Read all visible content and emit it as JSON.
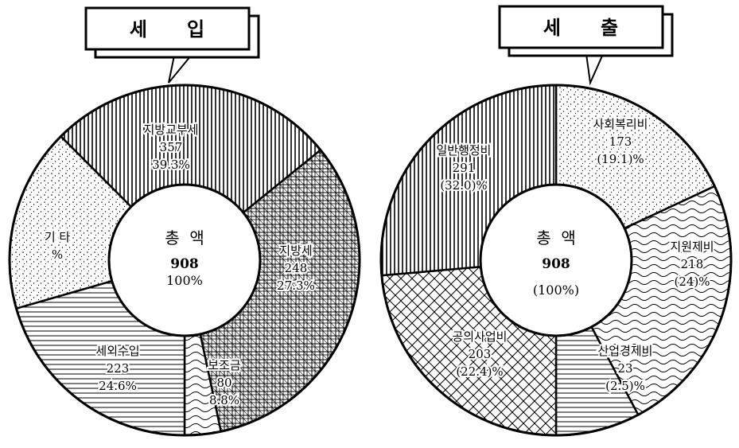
{
  "chart_data": [
    {
      "type": "pie",
      "title": "세      입",
      "center": {
        "label": "총  액",
        "total": "908",
        "percent": "100%"
      },
      "slices": [
        {
          "label": "지방교부세",
          "value": 357,
          "value_text": "357",
          "percent_text": "39.3%",
          "pattern": "hatch"
        },
        {
          "label": "지방세",
          "value": 248,
          "value_text": "248",
          "percent_text": "27.3%",
          "pattern": "grid"
        },
        {
          "label": "보조금",
          "value": 80,
          "value_text": "80",
          "percent_text": "8.8%",
          "pattern": "wave"
        },
        {
          "label": "세외수입",
          "value": 223,
          "value_text": "223",
          "percent_text": "24.6%",
          "pattern": "lines"
        },
        {
          "label": "기  타",
          "value": 0,
          "value_text": "",
          "percent_text": "%",
          "pattern": "dots"
        }
      ]
    },
    {
      "type": "pie",
      "title": "세      출",
      "center": {
        "label": "총  액",
        "total": "908",
        "percent": "(100%)"
      },
      "slices": [
        {
          "label": "사회복리비",
          "value": 173,
          "value_text": "173",
          "percent_text": "(19.1)%",
          "pattern": "dots"
        },
        {
          "label": "지원제비",
          "value": 218,
          "value_text": "218",
          "percent_text": "(24)%",
          "pattern": "wave"
        },
        {
          "label": "산업경제비",
          "value": 23,
          "value_text": "23",
          "percent_text": "(2.5)%",
          "pattern": "lines"
        },
        {
          "label": "공의사업비",
          "value": 203,
          "value_text": "203",
          "percent_text": "(22.4)%",
          "pattern": "cross"
        },
        {
          "label": "일반행정비",
          "value": 291,
          "value_text": "291",
          "percent_text": "(32.0)%",
          "pattern": "hatch"
        }
      ]
    }
  ]
}
